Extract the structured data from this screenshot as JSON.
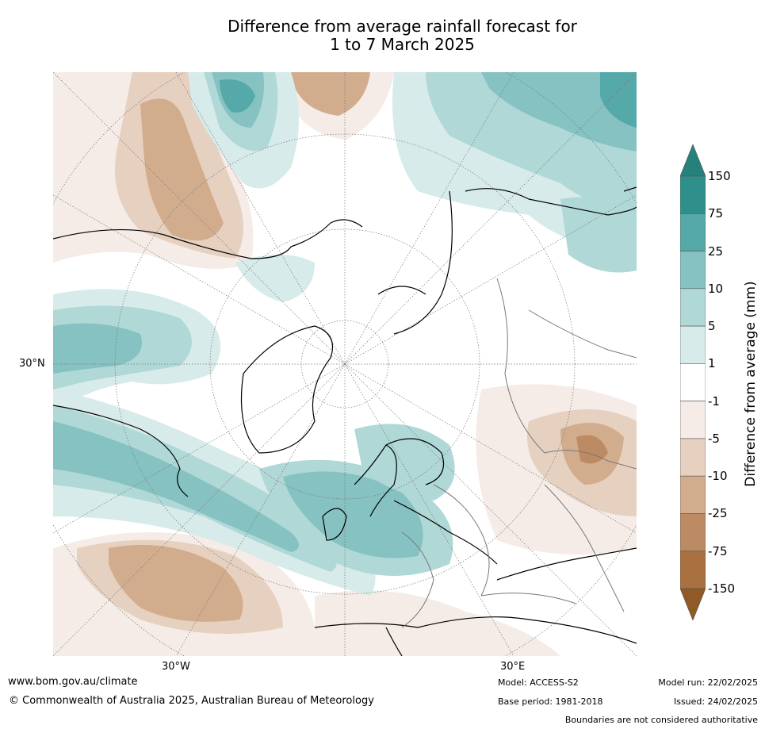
{
  "title": {
    "line1": "Difference from average rainfall forecast for",
    "line2": "1 to 7 March 2025"
  },
  "map": {
    "projection": "north-polar",
    "lat_labels": [
      "30°N"
    ],
    "lon_labels": [
      "30°W",
      "30°E"
    ]
  },
  "colorbar": {
    "title": "Difference from average (mm)",
    "ticks": [
      "150",
      "75",
      "25",
      "10",
      "5",
      "1",
      "-1",
      "-5",
      "-10",
      "-25",
      "-75",
      "-150"
    ],
    "colors": [
      "#2f8f8b",
      "#55a9a8",
      "#85c2c1",
      "#afd8d7",
      "#d7ebea",
      "#ffffff",
      "#f5ece7",
      "#e6d0c0",
      "#d2ad8d",
      "#bd8b63",
      "#a8713f"
    ],
    "over_color": "#26807c",
    "under_color": "#8f5a26"
  },
  "footer": {
    "website": "www.bom.gov.au/climate",
    "copyright": "© Commonwealth of Australia 2025, Australian Bureau of Meteorology",
    "model": "Model: ACCESS-S2",
    "base_period": "Base period: 1981-2018",
    "model_run": "Model run: 22/02/2025",
    "issued": "Issued: 24/02/2025",
    "disclaimer": "Boundaries are not considered authoritative"
  }
}
